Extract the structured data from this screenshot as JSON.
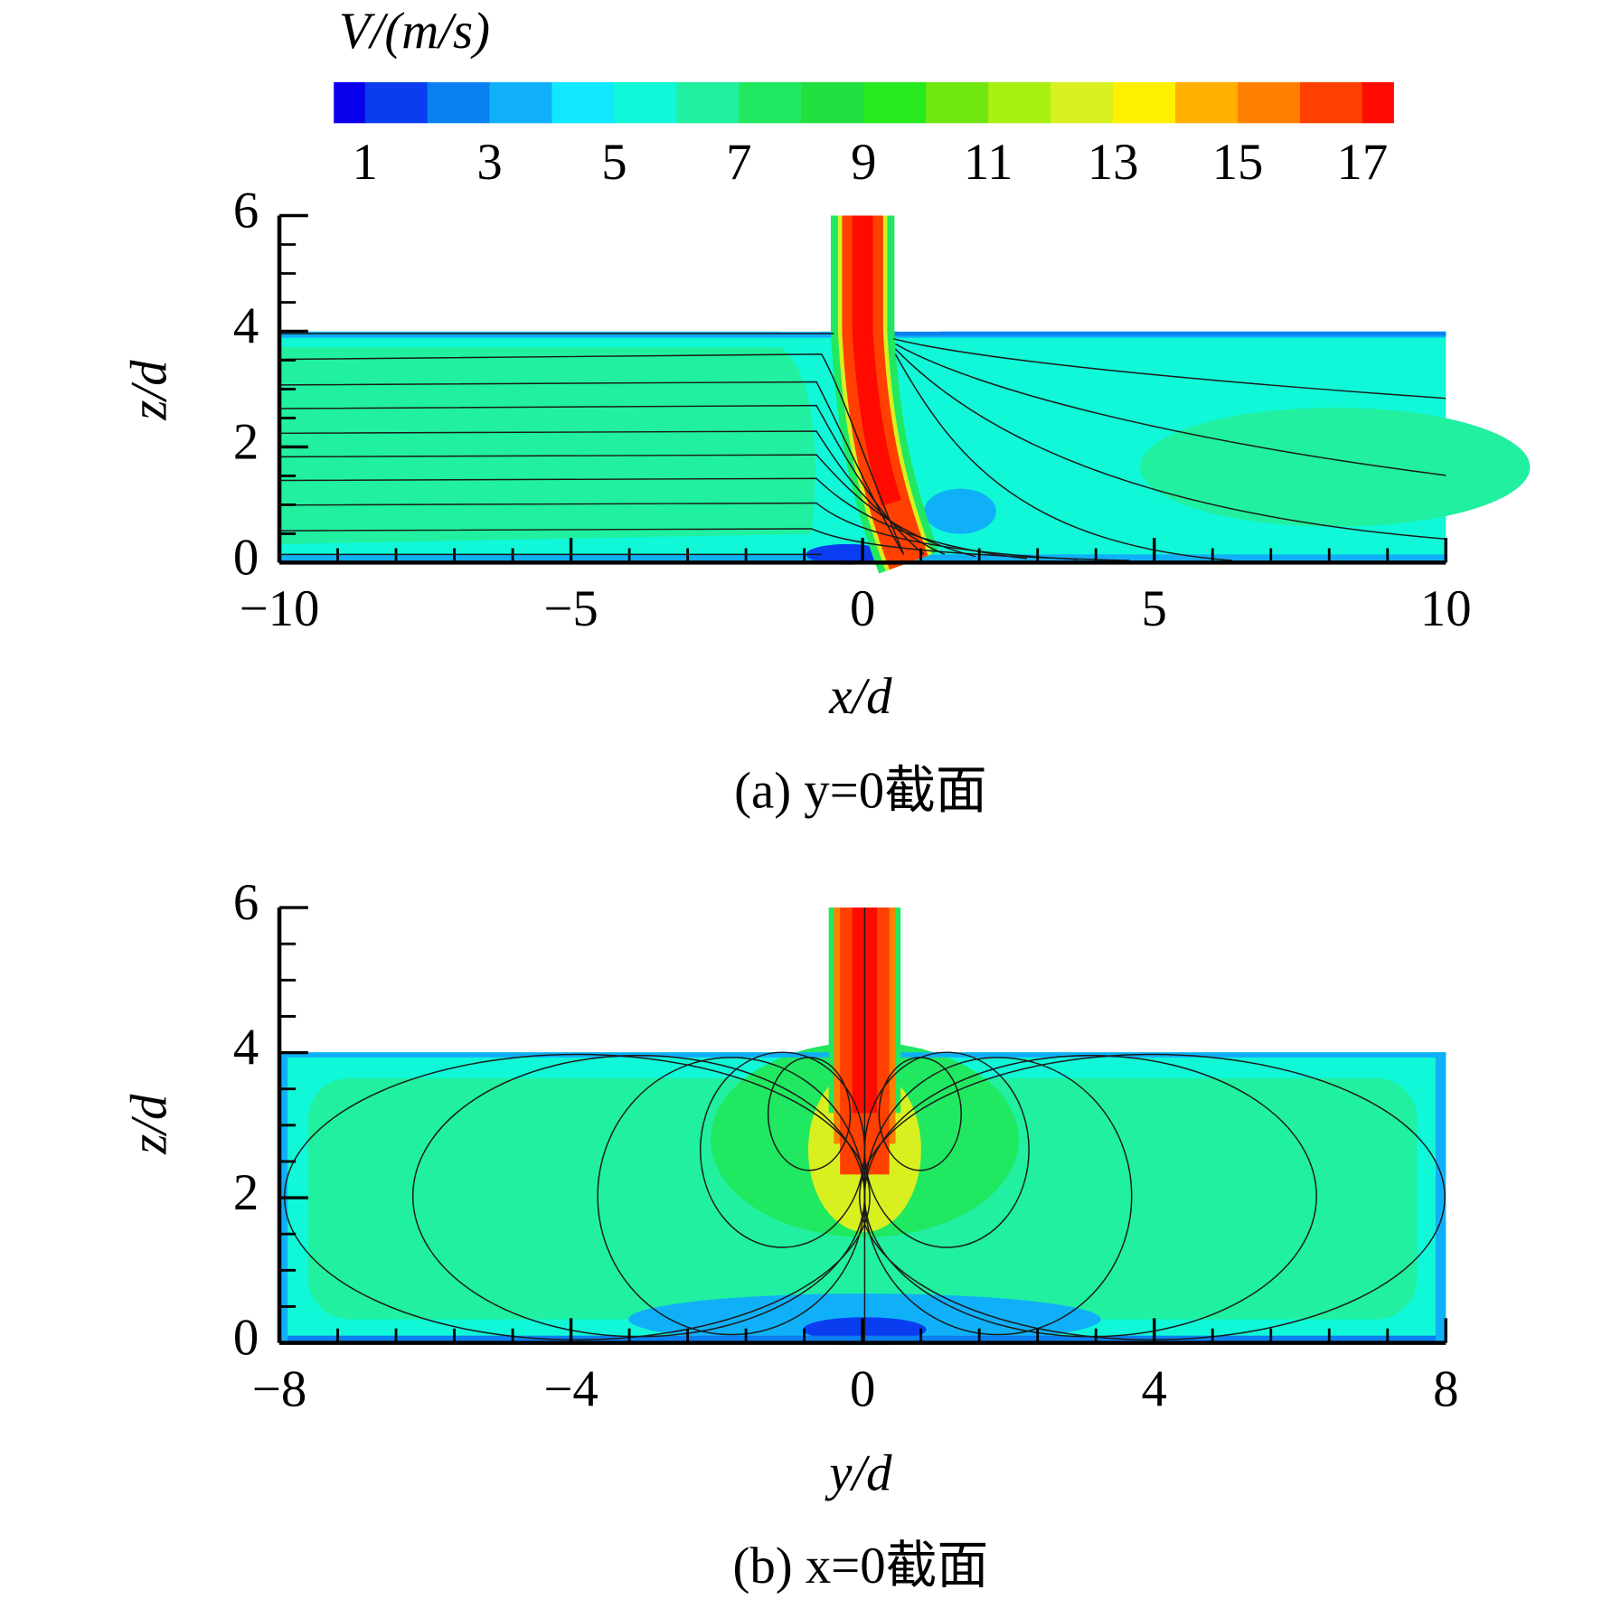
{
  "colorbar": {
    "label": "V/(m/s)",
    "range": [
      0.5,
      17.5
    ],
    "levels": [
      1,
      2,
      3,
      4,
      5,
      6,
      7,
      8,
      9,
      10,
      11,
      12,
      13,
      14,
      15,
      16,
      17
    ],
    "colors": [
      "#0a00ee",
      "#0a3cf0",
      "#0a80f0",
      "#10b0f8",
      "#10e8ff",
      "#10f8d8",
      "#20f0a0",
      "#20e860",
      "#20e040",
      "#28e820",
      "#70e810",
      "#a8f010",
      "#d8f020",
      "#fff000",
      "#ffb000",
      "#ff8000",
      "#ff4000",
      "#ff0a00"
    ],
    "ticks": [
      1,
      3,
      5,
      7,
      9,
      11,
      13,
      15,
      17
    ]
  },
  "panels": [
    {
      "caption": "(a) y=0截面",
      "xlabel": "x/d",
      "ylabel": "z/d",
      "xlim": [
        -10,
        10
      ],
      "ylim": [
        0,
        6
      ],
      "xticks": [
        {
          "value": -10,
          "label": "−10"
        },
        {
          "value": -5,
          "label": "−5"
        },
        0,
        5,
        10
      ],
      "yticks": [
        0,
        2,
        4,
        6
      ],
      "xminorticks": [
        -9,
        -8,
        -7,
        -6,
        -4,
        -3,
        -2,
        -1,
        1,
        2,
        3,
        4,
        6,
        7,
        8,
        9
      ],
      "yminorticks": [
        0.5,
        1,
        1.5,
        2.5,
        3,
        3.5,
        4.5,
        5,
        5.5
      ]
    },
    {
      "caption": "(b) x=0截面",
      "xlabel": "y/d",
      "ylabel": "z/d",
      "xlim": [
        -8,
        8
      ],
      "ylim": [
        0,
        6
      ],
      "xticks": [
        {
          "value": -8,
          "label": "−8"
        },
        {
          "value": -4,
          "label": "−4"
        },
        0,
        4,
        8
      ],
      "yticks": [
        0,
        2,
        4,
        6
      ],
      "xminorticks": [
        -7.2,
        -6.4,
        -5.6,
        -4.8,
        -3.2,
        -2.4,
        -1.6,
        -0.8,
        0.8,
        1.6,
        2.4,
        3.2,
        4.8,
        5.6,
        6.4,
        7.2
      ],
      "yminorticks": [
        0.5,
        1,
        1.5,
        2.5,
        3,
        3.5,
        4.5,
        5,
        5.5
      ]
    }
  ]
}
